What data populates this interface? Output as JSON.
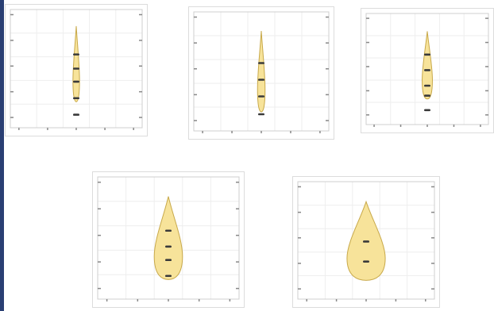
{
  "colors": {
    "frame": "#2a3f73",
    "plot_border": "#cfcfcf",
    "grid": "#eeeeee",
    "tick": "#888888",
    "shape_fill": "#f7e39a",
    "shape_stroke": "#c8a94a",
    "marker": "#3a3a3a"
  },
  "chart_data": [
    {
      "type": "scatter",
      "title": "",
      "xlabel": "",
      "ylabel": "",
      "grid": true,
      "xlim": [
        0,
        10
      ],
      "ylim": [
        0,
        10
      ],
      "shape": {
        "kind": "teardrop",
        "x": 5,
        "y_top": 8.6,
        "y_bottom": 2.2,
        "max_half_width": 0.25
      },
      "points": [
        {
          "x": 5,
          "y": 6.2
        },
        {
          "x": 5,
          "y": 5.0
        },
        {
          "x": 5,
          "y": 3.9
        },
        {
          "x": 5,
          "y": 2.5
        },
        {
          "x": 5,
          "y": 1.1
        }
      ]
    },
    {
      "type": "scatter",
      "title": "",
      "xlabel": "",
      "ylabel": "",
      "grid": true,
      "xlim": [
        0,
        10
      ],
      "ylim": [
        0,
        10
      ],
      "shape": {
        "kind": "teardrop",
        "x": 5,
        "y_top": 8.4,
        "y_bottom": 1.6,
        "max_half_width": 0.28
      },
      "points": [
        {
          "x": 5,
          "y": 5.7
        },
        {
          "x": 5,
          "y": 4.3
        },
        {
          "x": 5,
          "y": 2.9
        },
        {
          "x": 5,
          "y": 1.4
        }
      ]
    },
    {
      "type": "scatter",
      "title": "",
      "xlabel": "",
      "ylabel": "",
      "grid": true,
      "xlim": [
        0,
        10
      ],
      "ylim": [
        0,
        10
      ],
      "shape": {
        "kind": "teardrop",
        "x": 5,
        "y_top": 8.4,
        "y_bottom": 2.3,
        "max_half_width": 0.42
      },
      "points": [
        {
          "x": 5,
          "y": 6.3
        },
        {
          "x": 5,
          "y": 4.9
        },
        {
          "x": 5,
          "y": 3.5
        },
        {
          "x": 5,
          "y": 2.6
        },
        {
          "x": 5,
          "y": 1.3
        }
      ]
    },
    {
      "type": "scatter",
      "title": "",
      "xlabel": "",
      "ylabel": "",
      "grid": true,
      "xlim": [
        0,
        10
      ],
      "ylim": [
        0,
        10
      ],
      "shape": {
        "kind": "teardrop",
        "x": 5,
        "y_top": 8.4,
        "y_bottom": 1.6,
        "max_half_width": 1.0
      },
      "points": [
        {
          "x": 5,
          "y": 5.6
        },
        {
          "x": 5,
          "y": 4.3
        },
        {
          "x": 5,
          "y": 3.2
        },
        {
          "x": 5,
          "y": 1.9
        }
      ]
    },
    {
      "type": "scatter",
      "title": "",
      "xlabel": "",
      "ylabel": "",
      "grid": true,
      "xlim": [
        0,
        10
      ],
      "ylim": [
        0,
        10
      ],
      "shape": {
        "kind": "teardrop",
        "x": 5,
        "y_top": 8.3,
        "y_bottom": 1.6,
        "max_half_width": 1.4
      },
      "points": [
        {
          "x": 5,
          "y": 4.9
        },
        {
          "x": 5,
          "y": 3.2
        }
      ]
    }
  ]
}
